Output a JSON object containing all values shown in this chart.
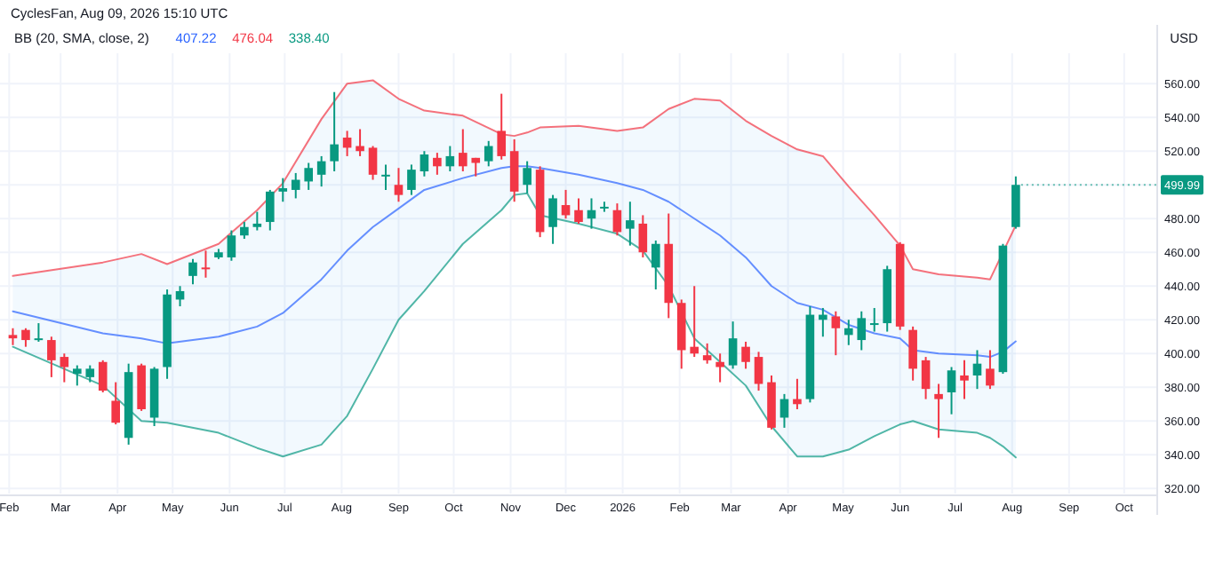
{
  "chart_data": {
    "type": "candlestick",
    "title": "CyclesFan, Aug 09, 2026 15:10 UTC",
    "ylabel": "USD",
    "legend_title": "BB (20, SMA, close, 2)",
    "legend": "top left",
    "grid": true,
    "xlim": [
      "2025-01-27",
      "2026-10-19"
    ],
    "xticks": [
      {
        "value": "2025-02-01",
        "label": "Feb"
      },
      {
        "value": "2025-03-01",
        "label": "Mar"
      },
      {
        "value": "2025-04-01",
        "label": "Apr"
      },
      {
        "value": "2025-05-01",
        "label": "May"
      },
      {
        "value": "2025-06-01",
        "label": "Jun"
      },
      {
        "value": "2025-07-01",
        "label": "Jul"
      },
      {
        "value": "2025-08-01",
        "label": "Aug"
      },
      {
        "value": "2025-09-01",
        "label": "Sep"
      },
      {
        "value": "2025-10-01",
        "label": "Oct"
      },
      {
        "value": "2025-11-01",
        "label": "Nov"
      },
      {
        "value": "2025-12-01",
        "label": "Dec"
      },
      {
        "value": "2026-01-01",
        "label": "2026"
      },
      {
        "value": "2026-02-01",
        "label": "Feb"
      },
      {
        "value": "2026-03-01",
        "label": "Mar"
      },
      {
        "value": "2026-04-01",
        "label": "Apr"
      },
      {
        "value": "2026-05-01",
        "label": "May"
      },
      {
        "value": "2026-06-01",
        "label": "Jun"
      },
      {
        "value": "2026-07-01",
        "label": "Jul"
      },
      {
        "value": "2026-08-01",
        "label": "Aug"
      },
      {
        "value": "2026-09-01",
        "label": "Sep"
      },
      {
        "value": "2026-10-01",
        "label": "Oct"
      }
    ],
    "ylim": [
      317,
      578
    ],
    "yticks": [
      {
        "value": 320,
        "label": "320.00"
      },
      {
        "value": 340,
        "label": "340.00"
      },
      {
        "value": 360,
        "label": "360.00"
      },
      {
        "value": 380,
        "label": "380.00"
      },
      {
        "value": 400,
        "label": "400.00"
      },
      {
        "value": 420,
        "label": "420.00"
      },
      {
        "value": 440,
        "label": "440.00"
      },
      {
        "value": 460,
        "label": "460.00"
      },
      {
        "value": 480,
        "label": "480.00"
      },
      {
        "value": 500,
        "label": null
      },
      {
        "value": 520,
        "label": "520.00"
      },
      {
        "value": 540,
        "label": "540.00"
      },
      {
        "value": 560,
        "label": "560.00"
      }
    ],
    "annotations": [
      {
        "text": "499.99",
        "x": "2026-08-03",
        "y": 499.99
      }
    ],
    "series": [
      {
        "type": "line",
        "name": "407.22",
        "color": "#2962ff",
        "x": [
          "2025-02-03",
          "2025-03-24",
          "2025-04-14",
          "2025-04-28",
          "2025-05-26",
          "2025-06-16",
          "2025-06-30",
          "2025-07-21",
          "2025-08-04",
          "2025-08-18",
          "2025-09-01",
          "2025-09-15",
          "2025-10-06",
          "2025-10-27",
          "2025-11-03",
          "2025-11-10",
          "2025-11-17",
          "2025-12-08",
          "2025-12-29",
          "2026-01-12",
          "2026-01-26",
          "2026-02-09",
          "2026-02-23",
          "2026-03-09",
          "2026-03-23",
          "2026-04-06",
          "2026-04-20",
          "2026-05-04",
          "2026-05-18",
          "2026-06-01",
          "2026-06-08",
          "2026-06-22",
          "2026-07-13",
          "2026-07-20",
          "2026-07-27",
          "2026-08-03"
        ],
        "values": [
          425,
          412,
          409,
          406,
          410,
          416,
          424,
          444,
          461,
          475,
          486,
          497,
          504,
          510,
          511,
          511,
          510,
          506,
          501,
          497,
          490,
          480,
          470,
          457,
          440,
          430,
          426,
          417,
          412,
          409,
          402,
          400,
          399,
          398,
          401,
          407.22
        ],
        "upper": [
          446,
          454,
          459,
          453,
          465,
          485,
          501,
          539,
          560,
          562,
          551,
          544,
          541,
          530,
          529,
          531,
          534,
          535,
          532,
          534,
          545,
          551,
          550,
          538,
          529,
          521,
          517,
          499,
          482,
          464,
          450,
          447,
          445,
          444,
          457,
          476.04
        ],
        "lower": [
          404,
          381,
          360,
          359,
          353,
          344,
          339,
          346,
          363,
          391,
          420,
          437,
          465,
          485,
          494,
          495,
          482,
          477,
          471,
          461,
          440,
          409,
          395,
          381,
          357,
          339,
          339,
          343,
          351,
          358,
          360,
          355,
          353,
          350,
          345,
          338.4
        ]
      },
      {
        "type": "line",
        "name": "476.04",
        "color": "#f23645",
        "x": [
          "2025-02-03",
          "2025-03-24",
          "2025-04-14",
          "2025-04-28",
          "2025-05-26",
          "2025-06-16",
          "2025-06-30",
          "2025-07-21",
          "2025-08-04",
          "2025-08-18",
          "2025-09-01",
          "2025-09-15",
          "2025-10-06",
          "2025-10-27",
          "2025-11-03",
          "2025-11-10",
          "2025-11-17",
          "2025-12-08",
          "2025-12-29",
          "2026-01-12",
          "2026-01-26",
          "2026-02-09",
          "2026-02-23",
          "2026-03-09",
          "2026-03-23",
          "2026-04-06",
          "2026-04-20",
          "2026-05-04",
          "2026-05-18",
          "2026-06-01",
          "2026-06-08",
          "2026-06-22",
          "2026-07-13",
          "2026-07-20",
          "2026-08-03"
        ],
        "values": [
          446,
          454,
          459,
          453,
          465,
          485,
          501,
          539,
          560,
          562,
          551,
          544,
          541,
          530,
          529,
          531,
          534,
          535,
          532,
          534,
          545,
          551,
          550,
          538,
          529,
          521,
          517,
          499,
          482,
          464,
          450,
          447,
          445,
          444,
          476.04
        ]
      },
      {
        "type": "line",
        "name": "338.40",
        "color": "#089981",
        "x": [
          "2025-02-03",
          "2025-03-24",
          "2025-04-14",
          "2025-04-28",
          "2025-05-26",
          "2025-06-16",
          "2025-06-30",
          "2025-07-21",
          "2025-08-04",
          "2025-08-18",
          "2025-09-01",
          "2025-09-15",
          "2025-10-06",
          "2025-10-27",
          "2025-11-03",
          "2025-11-10",
          "2025-11-17",
          "2025-12-08",
          "2025-12-29",
          "2026-01-12",
          "2026-01-26",
          "2026-02-09",
          "2026-02-23",
          "2026-03-09",
          "2026-03-23",
          "2026-04-06",
          "2026-04-20",
          "2026-05-04",
          "2026-05-18",
          "2026-06-01",
          "2026-06-08",
          "2026-06-22",
          "2026-07-13",
          "2026-07-20",
          "2026-07-27",
          "2026-08-03"
        ],
        "values": [
          404,
          381,
          360,
          359,
          353,
          344,
          339,
          346,
          363,
          391,
          420,
          437,
          465,
          485,
          494,
          495,
          482,
          477,
          471,
          461,
          440,
          409,
          395,
          381,
          357,
          339,
          339,
          343,
          351,
          358,
          360,
          355,
          353,
          350,
          345,
          338.4
        ]
      },
      {
        "x": [
          "2025-02-03",
          "2025-02-10",
          "2025-02-17",
          "2025-02-24",
          "2025-03-03",
          "2025-03-10",
          "2025-03-17",
          "2025-03-24",
          "2025-03-31",
          "2025-04-07",
          "2025-04-14",
          "2025-04-21",
          "2025-04-28",
          "2025-05-05",
          "2025-05-12",
          "2025-05-19",
          "2025-05-26",
          "2025-06-02",
          "2025-06-09",
          "2025-06-16",
          "2025-06-23",
          "2025-06-30",
          "2025-07-07",
          "2025-07-14",
          "2025-07-21",
          "2025-07-28",
          "2025-08-04",
          "2025-08-11",
          "2025-08-18",
          "2025-08-25",
          "2025-09-01",
          "2025-09-08",
          "2025-09-15",
          "2025-09-22",
          "2025-09-29",
          "2025-10-06",
          "2025-10-13",
          "2025-10-20",
          "2025-10-27",
          "2025-11-03",
          "2025-11-10",
          "2025-11-17",
          "2025-11-24",
          "2025-12-01",
          "2025-12-08",
          "2025-12-15",
          "2025-12-22",
          "2025-12-29",
          "2026-01-05",
          "2026-01-12",
          "2026-01-19",
          "2026-01-26",
          "2026-02-02",
          "2026-02-09",
          "2026-02-16",
          "2026-02-23",
          "2026-03-02",
          "2026-03-09",
          "2026-03-16",
          "2026-03-23",
          "2026-03-30",
          "2026-04-06",
          "2026-04-13",
          "2026-04-20",
          "2026-04-27",
          "2026-05-04",
          "2026-05-11",
          "2026-05-18",
          "2026-05-25",
          "2026-06-01",
          "2026-06-08",
          "2026-06-15",
          "2026-06-22",
          "2026-06-29",
          "2026-07-06",
          "2026-07-13",
          "2026-07-20",
          "2026-07-27",
          "2026-08-03"
        ],
        "ohlc": [
          [
            411,
            415,
            405,
            409
          ],
          [
            414,
            415,
            404,
            408
          ],
          [
            408,
            418,
            407,
            409
          ],
          [
            408,
            410,
            386,
            396
          ],
          [
            398,
            400,
            383,
            392
          ],
          [
            388,
            393,
            381,
            391
          ],
          [
            386,
            393,
            383,
            391
          ],
          [
            395,
            396,
            377,
            378
          ],
          [
            372,
            383,
            358,
            359
          ],
          [
            350,
            394,
            346,
            389
          ],
          [
            393,
            394,
            366,
            367
          ],
          [
            362,
            392,
            357,
            391
          ],
          [
            392,
            438,
            385,
            435
          ],
          [
            432,
            440,
            428,
            437
          ],
          [
            446,
            456,
            441,
            454
          ],
          [
            451,
            461,
            445,
            450
          ],
          [
            457,
            462,
            456,
            460
          ],
          [
            457,
            473,
            455,
            470
          ],
          [
            470,
            478,
            468,
            475
          ],
          [
            475,
            484,
            473,
            477
          ],
          [
            478,
            497,
            473,
            496
          ],
          [
            496,
            504,
            490,
            498
          ],
          [
            497,
            507,
            492,
            503
          ],
          [
            502,
            513,
            497,
            510
          ],
          [
            506,
            517,
            499,
            514
          ],
          [
            514,
            555,
            508,
            524
          ],
          [
            528,
            532,
            517,
            522
          ],
          [
            523,
            533,
            517,
            520
          ],
          [
            522,
            523,
            503,
            506
          ],
          [
            505,
            512,
            497,
            506
          ],
          [
            500,
            510,
            490,
            494
          ],
          [
            497,
            512,
            494,
            509
          ],
          [
            508,
            520,
            505,
            518
          ],
          [
            516,
            519,
            506,
            511
          ],
          [
            511,
            523,
            508,
            517
          ],
          [
            519,
            533,
            508,
            511
          ],
          [
            516,
            516,
            505,
            513
          ],
          [
            514,
            526,
            511,
            523
          ],
          [
            532,
            554,
            515,
            517
          ],
          [
            520,
            527,
            490,
            496
          ],
          [
            500,
            514,
            495,
            510
          ],
          [
            509,
            511,
            469,
            472
          ],
          [
            475,
            494,
            465,
            492
          ],
          [
            488,
            497,
            480,
            482
          ],
          [
            485,
            492,
            477,
            478
          ],
          [
            480,
            492,
            474,
            485
          ],
          [
            486,
            490,
            484,
            487
          ],
          [
            485,
            489,
            470,
            472
          ],
          [
            474,
            490,
            464,
            479
          ],
          [
            477,
            482,
            457,
            460
          ],
          [
            451,
            467,
            438,
            465
          ],
          [
            465,
            483,
            421,
            430
          ],
          [
            430,
            432,
            391,
            402
          ],
          [
            404,
            440,
            398,
            400
          ],
          [
            399,
            406,
            394,
            396
          ],
          [
            395,
            400,
            383,
            392
          ],
          [
            393,
            419,
            391,
            409
          ],
          [
            404,
            407,
            391,
            395
          ],
          [
            398,
            401,
            378,
            382
          ],
          [
            383,
            387,
            355,
            356
          ],
          [
            362,
            376,
            356,
            373
          ],
          [
            373,
            385,
            367,
            370
          ],
          [
            373,
            428,
            371,
            423
          ],
          [
            420,
            427,
            410,
            423
          ],
          [
            422,
            425,
            399,
            415
          ],
          [
            411,
            420,
            405,
            415
          ],
          [
            408,
            425,
            402,
            421
          ],
          [
            417,
            427,
            413,
            418
          ],
          [
            418,
            452,
            413,
            450
          ],
          [
            465,
            466,
            414,
            416
          ],
          [
            414,
            416,
            384,
            391
          ],
          [
            396,
            398,
            373,
            379
          ],
          [
            376,
            382,
            350,
            373
          ],
          [
            377,
            392,
            364,
            390
          ],
          [
            387,
            396,
            373,
            384
          ],
          [
            387,
            402,
            379,
            394
          ],
          [
            391,
            402,
            379,
            381
          ],
          [
            389,
            465,
            388,
            464
          ],
          [
            475,
            505,
            474,
            499.99
          ]
        ],
        "colors": [
          "#f23645",
          "#f23645",
          "#089981",
          "#f23645",
          "#f23645",
          "#089981",
          "#089981",
          "#f23645",
          "#f23645",
          "#089981",
          "#f23645",
          "#089981",
          "#089981",
          "#089981",
          "#089981",
          "#f23645",
          "#089981",
          "#089981",
          "#089981",
          "#089981",
          "#089981",
          "#089981",
          "#089981",
          "#089981",
          "#089981",
          "#089981",
          "#f23645",
          "#f23645",
          "#f23645",
          "#089981",
          "#f23645",
          "#089981",
          "#089981",
          "#f23645",
          "#089981",
          "#f23645",
          "#f23645",
          "#089981",
          "#f23645",
          "#f23645",
          "#089981",
          "#f23645",
          "#089981",
          "#f23645",
          "#f23645",
          "#089981",
          "#089981",
          "#f23645",
          "#089981",
          "#f23645",
          "#089981",
          "#f23645",
          "#f23645",
          "#f23645",
          "#f23645",
          "#f23645",
          "#089981",
          "#f23645",
          "#f23645",
          "#f23645",
          "#089981",
          "#f23645",
          "#089981",
          "#089981",
          "#f23645",
          "#089981",
          "#089981",
          "#089981",
          "#089981",
          "#f23645",
          "#f23645",
          "#f23645",
          "#f23645",
          "#089981",
          "#f23645",
          "#089981",
          "#f23645",
          "#089981",
          "#089981"
        ]
      }
    ]
  }
}
